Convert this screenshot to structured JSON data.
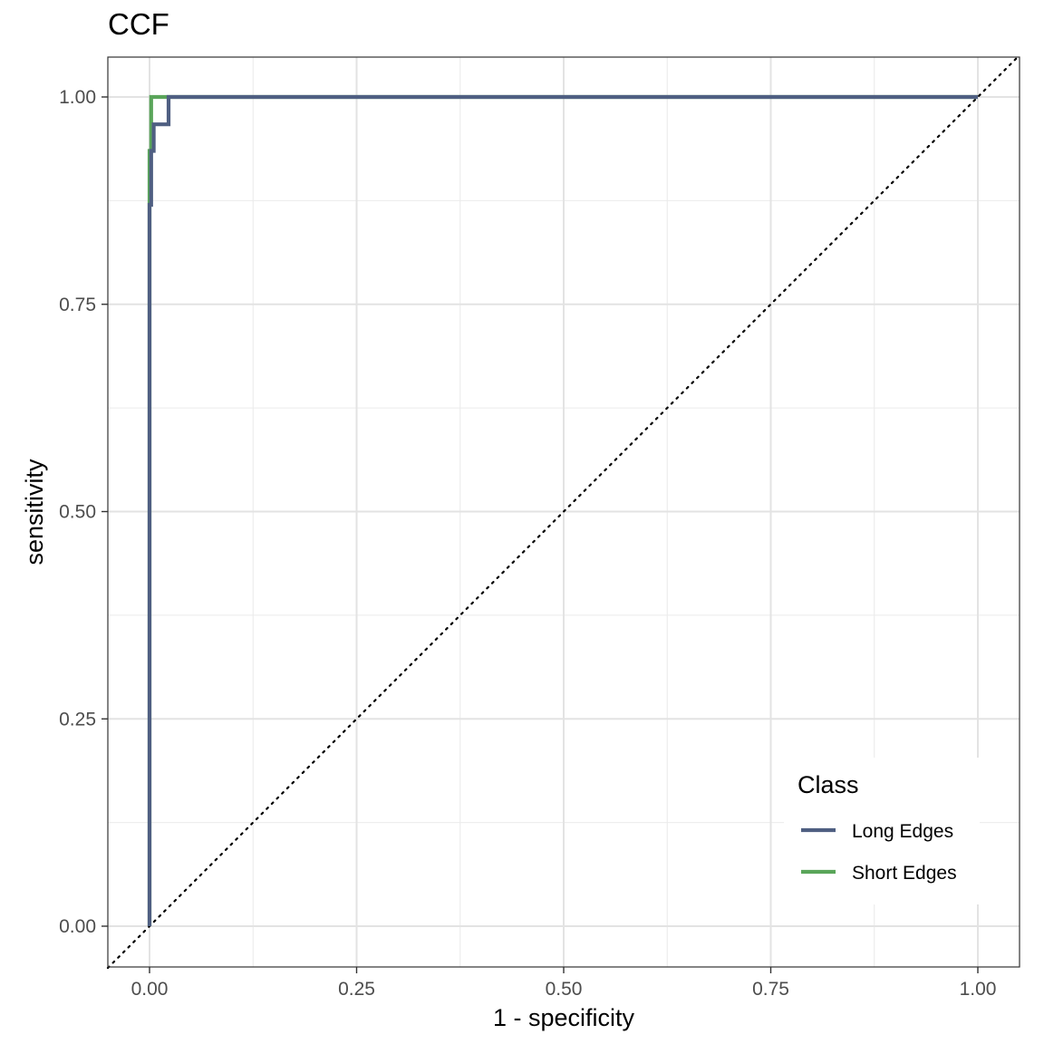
{
  "chart_data": {
    "type": "line",
    "title": "CCF",
    "xlabel": "1 - specificity",
    "ylabel": "sensitivity",
    "xlim": [
      0,
      1
    ],
    "ylim": [
      0,
      1
    ],
    "x_ticks": [
      "0.00",
      "0.25",
      "0.50",
      "0.75",
      "1.00"
    ],
    "y_ticks": [
      "0.00",
      "0.25",
      "0.50",
      "0.75",
      "1.00"
    ],
    "grid": true,
    "reference_line": "diagonal dotted",
    "legend": {
      "title": "Class",
      "position": "bottom-right"
    },
    "series": [
      {
        "name": "Long Edges",
        "color": "#4f5f82",
        "x": [
          0,
          0,
          0.002,
          0.002,
          0.005,
          0.005,
          0.023,
          0.023,
          1.0
        ],
        "y": [
          0,
          0.87,
          0.87,
          0.935,
          0.935,
          0.967,
          0.967,
          1.0,
          1.0
        ]
      },
      {
        "name": "Short Edges",
        "color": "#5aa55a",
        "x": [
          0,
          0,
          0.002,
          0.002,
          1.0
        ],
        "y": [
          0,
          0.935,
          0.935,
          1.0,
          1.0
        ]
      }
    ]
  }
}
